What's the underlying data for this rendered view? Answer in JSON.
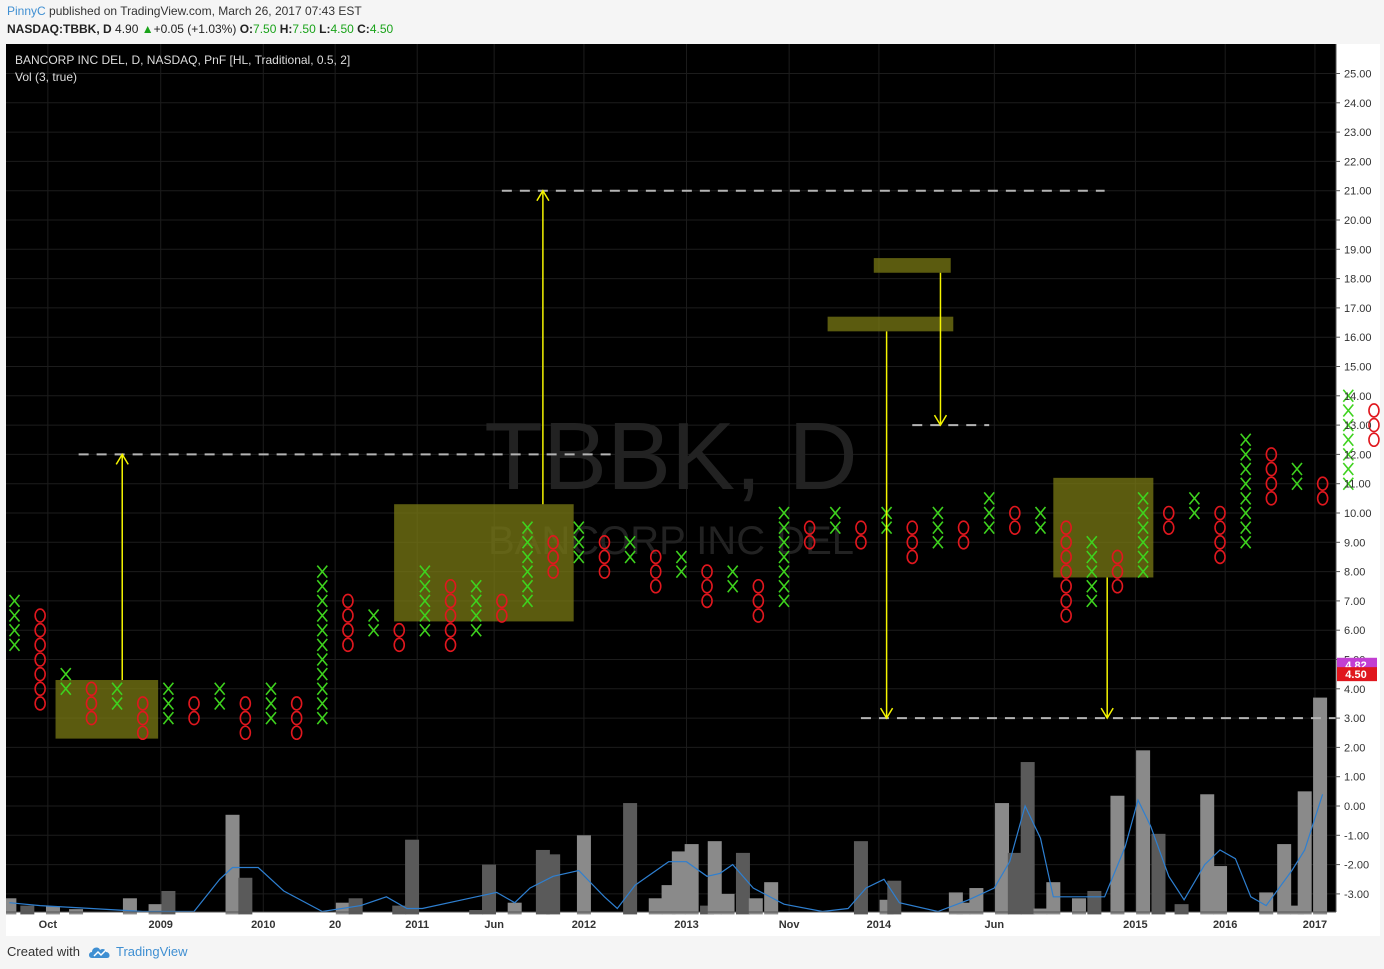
{
  "header": {
    "user": "PinnyC",
    "published": "published on TradingView.com, March 26, 2017 07:43 EST",
    "symbol": "NASDAQ:TBBK, D",
    "last": "4.90",
    "change": "+0.05 (+1.03%)",
    "o_label": "O:",
    "o_val": "7.50",
    "h_label": "H:",
    "h_val": "7.50",
    "l_label": "L:",
    "l_val": "4.50",
    "c_label": "C:",
    "c_val": "4.50"
  },
  "legend": {
    "line1": "BANCORP INC DEL, D, NASDAQ, PnF [HL, Traditional, 0.5, 2]",
    "line2": "Vol (3, true)"
  },
  "watermark": {
    "ticker": "TBBK, D",
    "name": "BANCORP INC DEL"
  },
  "price_tags": [
    {
      "value": "4.82",
      "color": "#c23fd2"
    },
    {
      "value": "4.50",
      "color": "#e0171e"
    }
  ],
  "footer": {
    "created": "Created with",
    "brand": "TradingView"
  },
  "colors": {
    "x": "#3ed21e",
    "o": "#e0171e",
    "box": "#7a7a14",
    "arrow": "#f5f500",
    "vol_line": "#2e7fd0",
    "bg": "#000000"
  },
  "chart_data": {
    "type": "point-and-figure",
    "box_size": 0.5,
    "reversal": 2,
    "ylim": [
      -4,
      25.5
    ],
    "y_ticks": [
      "25.00",
      "24.00",
      "23.00",
      "22.00",
      "21.00",
      "20.00",
      "19.00",
      "18.00",
      "17.00",
      "16.00",
      "15.00",
      "14.00",
      "13.00",
      "12.00",
      "11.00",
      "10.00",
      "9.00",
      "8.00",
      "7.00",
      "6.00",
      "5.00",
      "4.00",
      "3.00",
      "2.00",
      "1.00",
      "0.00",
      "-1.00",
      "-2.00",
      "-3.00"
    ],
    "x_ticks": [
      {
        "col": 1.3,
        "label": "Oct"
      },
      {
        "col": 5.7,
        "label": "2009"
      },
      {
        "col": 9.7,
        "label": "2010"
      },
      {
        "col": 12.5,
        "label": "20"
      },
      {
        "col": 15.7,
        "label": "2011"
      },
      {
        "col": 18.7,
        "label": "Jun"
      },
      {
        "col": 22.2,
        "label": "2012"
      },
      {
        "col": 26.2,
        "label": "2013"
      },
      {
        "col": 30.2,
        "label": "Nov"
      },
      {
        "col": 33.7,
        "label": "2014"
      },
      {
        "col": 38.2,
        "label": "Jun"
      },
      {
        "col": 43.7,
        "label": "2015"
      },
      {
        "col": 47.2,
        "label": "2016"
      },
      {
        "col": 50.7,
        "label": "2017"
      }
    ],
    "columns": [
      {
        "t": "X",
        "lo": 5.5,
        "hi": 7.0
      },
      {
        "t": "O",
        "lo": 3.5,
        "hi": 6.5
      },
      {
        "t": "X",
        "lo": 4.0,
        "hi": 4.5
      },
      {
        "t": "O",
        "lo": 3.0,
        "hi": 4.0
      },
      {
        "t": "X",
        "lo": 3.5,
        "hi": 4.0
      },
      {
        "t": "O",
        "lo": 2.5,
        "hi": 3.5
      },
      {
        "t": "X",
        "lo": 3.0,
        "hi": 4.0
      },
      {
        "t": "O",
        "lo": 3.0,
        "hi": 3.5
      },
      {
        "t": "X",
        "lo": 3.5,
        "hi": 4.0
      },
      {
        "t": "O",
        "lo": 2.5,
        "hi": 3.5
      },
      {
        "t": "X",
        "lo": 3.0,
        "hi": 4.0
      },
      {
        "t": "O",
        "lo": 2.5,
        "hi": 3.5
      },
      {
        "t": "X",
        "lo": 3.0,
        "hi": 8.0
      },
      {
        "t": "O",
        "lo": 5.5,
        "hi": 7.0
      },
      {
        "t": "X",
        "lo": 6.0,
        "hi": 6.5
      },
      {
        "t": "O",
        "lo": 5.5,
        "hi": 6.0
      },
      {
        "t": "X",
        "lo": 6.0,
        "hi": 8.0
      },
      {
        "t": "O",
        "lo": 5.5,
        "hi": 7.5
      },
      {
        "t": "X",
        "lo": 6.0,
        "hi": 7.5
      },
      {
        "t": "O",
        "lo": 6.5,
        "hi": 7.0
      },
      {
        "t": "X",
        "lo": 7.0,
        "hi": 9.5
      },
      {
        "t": "O",
        "lo": 8.0,
        "hi": 9.0
      },
      {
        "t": "X",
        "lo": 8.5,
        "hi": 9.5
      },
      {
        "t": "O",
        "lo": 8.0,
        "hi": 9.0
      },
      {
        "t": "X",
        "lo": 8.5,
        "hi": 9.0
      },
      {
        "t": "O",
        "lo": 7.5,
        "hi": 8.5
      },
      {
        "t": "X",
        "lo": 8.0,
        "hi": 8.5
      },
      {
        "t": "O",
        "lo": 7.0,
        "hi": 8.0
      },
      {
        "t": "X",
        "lo": 7.5,
        "hi": 8.0
      },
      {
        "t": "O",
        "lo": 6.5,
        "hi": 7.5
      },
      {
        "t": "X",
        "lo": 7.0,
        "hi": 10.0
      },
      {
        "t": "O",
        "lo": 9.0,
        "hi": 9.5
      },
      {
        "t": "X",
        "lo": 9.5,
        "hi": 10.0
      },
      {
        "t": "O",
        "lo": 9.0,
        "hi": 9.5
      },
      {
        "t": "X",
        "lo": 9.5,
        "hi": 10.0
      },
      {
        "t": "O",
        "lo": 8.5,
        "hi": 9.5
      },
      {
        "t": "X",
        "lo": 9.0,
        "hi": 10.0
      },
      {
        "t": "O",
        "lo": 9.0,
        "hi": 9.5
      },
      {
        "t": "X",
        "lo": 9.5,
        "hi": 10.5
      },
      {
        "t": "O",
        "lo": 9.5,
        "hi": 10.0
      },
      {
        "t": "X",
        "lo": 9.5,
        "hi": 10.0
      },
      {
        "t": "O",
        "lo": 6.5,
        "hi": 9.5
      },
      {
        "t": "X",
        "lo": 7.0,
        "hi": 9.0
      },
      {
        "t": "O",
        "lo": 7.5,
        "hi": 8.5
      },
      {
        "t": "X",
        "lo": 8.0,
        "hi": 10.5
      },
      {
        "t": "O",
        "lo": 9.5,
        "hi": 10.0
      },
      {
        "t": "X",
        "lo": 10.0,
        "hi": 10.5
      },
      {
        "t": "O",
        "lo": 8.5,
        "hi": 10.0
      },
      {
        "t": "X",
        "lo": 9.0,
        "hi": 12.5
      },
      {
        "t": "O",
        "lo": 10.5,
        "hi": 12.0
      },
      {
        "t": "X",
        "lo": 11.0,
        "hi": 11.5
      },
      {
        "t": "O",
        "lo": 10.5,
        "hi": 11.0
      },
      {
        "t": "X",
        "lo": 11.0,
        "hi": 14.0
      },
      {
        "t": "O",
        "lo": 12.5,
        "hi": 13.5
      },
      {
        "t": "X",
        "lo": 13.0,
        "hi": 16.0
      },
      {
        "t": "O",
        "lo": 15.0,
        "hi": 16.0
      },
      {
        "t": "X",
        "lo": 15.5,
        "hi": 18.5
      },
      {
        "t": "O",
        "lo": 17.5,
        "hi": 18.0
      },
      {
        "t": "X",
        "lo": 18.0,
        "hi": 19.0
      },
      {
        "t": "O",
        "lo": 16.0,
        "hi": 18.5
      },
      {
        "t": "X",
        "lo": 16.5,
        "hi": 18.0
      },
      {
        "t": "O",
        "lo": 17.0,
        "hi": 17.5
      },
      {
        "t": "X",
        "lo": 17.5,
        "hi": 18.0
      },
      {
        "t": "O",
        "lo": 16.5,
        "hi": 17.5
      },
      {
        "t": "X",
        "lo": 17.0,
        "hi": 17.5
      },
      {
        "t": "O",
        "lo": 16.5,
        "hi": 17.0
      },
      {
        "t": "X",
        "lo": 17.0,
        "hi": 19.5
      },
      {
        "t": "O",
        "lo": 18.5,
        "hi": 19.0
      },
      {
        "t": "X",
        "lo": 19.0,
        "hi": 20.0
      },
      {
        "t": "O",
        "lo": 18.5,
        "hi": 19.5
      },
      {
        "t": "X",
        "lo": 18.5,
        "hi": 19.0
      },
      {
        "t": "O",
        "lo": 18.0,
        "hi": 19.0
      },
      {
        "t": "X",
        "lo": 18.5,
        "hi": 19.0
      },
      {
        "t": "O",
        "lo": 15.5,
        "hi": 18.5
      },
      {
        "t": "X",
        "lo": 16.0,
        "hi": 16.5
      },
      {
        "t": "O",
        "lo": 15.0,
        "hi": 16.0
      },
      {
        "t": "X",
        "lo": 15.5,
        "hi": 16.5
      },
      {
        "t": "O",
        "lo": 10.0,
        "hi": 16.0
      },
      {
        "t": "X",
        "lo": 10.5,
        "hi": 12.0
      },
      {
        "t": "O",
        "lo": 8.5,
        "hi": 11.5
      },
      {
        "t": "X",
        "lo": 9.0,
        "hi": 9.5
      },
      {
        "t": "O",
        "lo": 8.0,
        "hi": 9.5
      },
      {
        "t": "X",
        "lo": 8.5,
        "hi": 9.0
      },
      {
        "t": "O",
        "lo": 8.0,
        "hi": 8.5
      },
      {
        "t": "X",
        "lo": 8.5,
        "hi": 10.0
      },
      {
        "t": "O",
        "lo": 9.0,
        "hi": 9.5
      },
      {
        "t": "X",
        "lo": 9.5,
        "hi": 11.0
      },
      {
        "t": "O",
        "lo": 8.5,
        "hi": 10.5
      },
      {
        "t": "X",
        "lo": 9.0,
        "hi": 10.5
      },
      {
        "t": "O",
        "lo": 7.5,
        "hi": 10.0
      },
      {
        "t": "X",
        "lo": 8.0,
        "hi": 9.0
      },
      {
        "t": "O",
        "lo": 7.0,
        "hi": 8.5
      },
      {
        "t": "X",
        "lo": 7.5,
        "hi": 8.0
      },
      {
        "t": "O",
        "lo": 4.0,
        "hi": 7.5
      },
      {
        "t": "X",
        "lo": 4.5,
        "hi": 6.0
      },
      {
        "t": "O",
        "lo": 5.5,
        "hi": 6.0
      },
      {
        "t": "X",
        "lo": 6.0,
        "hi": 7.0
      },
      {
        "t": "O",
        "lo": 5.0,
        "hi": 6.5
      },
      {
        "t": "X",
        "lo": 5.5,
        "hi": 7.0
      },
      {
        "t": "O",
        "lo": 6.0,
        "hi": 6.5
      },
      {
        "t": "X",
        "lo": 6.5,
        "hi": 8.0
      },
      {
        "t": "O",
        "lo": 4.5,
        "hi": 7.5
      }
    ],
    "boxes": [
      {
        "c0": 1.6,
        "c1": 5.6,
        "lo": 2.3,
        "hi": 4.3
      },
      {
        "c0": 14.8,
        "c1": 21.8,
        "lo": 6.3,
        "hi": 10.3
      },
      {
        "c0": 31.7,
        "c1": 36.6,
        "lo": 16.2,
        "hi": 16.7
      },
      {
        "c0": 33.5,
        "c1": 36.5,
        "lo": 18.2,
        "hi": 18.7
      },
      {
        "c0": 40.5,
        "c1": 44.4,
        "lo": 7.8,
        "hi": 11.2
      }
    ],
    "dashed_lines": [
      {
        "c0": 2.5,
        "c1": 23.5,
        "y": 12.0
      },
      {
        "c0": 19.0,
        "c1": 42.5,
        "y": 21.0
      },
      {
        "c0": 35.0,
        "c1": 38.0,
        "y": 13.0
      },
      {
        "c0": 33.0,
        "c1": 51.5,
        "y": 3.0
      }
    ],
    "arrows": [
      {
        "c": 4.2,
        "y0": 4.3,
        "y1": 12.0
      },
      {
        "c": 20.6,
        "y0": 10.3,
        "y1": 21.0
      },
      {
        "c": 34.0,
        "y0": 16.2,
        "y1": 3.0
      },
      {
        "c": 36.1,
        "y0": 18.2,
        "y1": 13.0
      },
      {
        "c": 42.6,
        "y0": 7.8,
        "y1": 3.0
      }
    ],
    "volume": {
      "bars": [
        {
          "c": -0.2,
          "v": 0.55
        },
        {
          "c": 0.5,
          "v": 0.3
        },
        {
          "c": 1.5,
          "v": 0.28
        },
        {
          "c": 2.4,
          "v": 0.18
        },
        {
          "c": 4.5,
          "v": 0.55
        },
        {
          "c": 5.5,
          "v": 0.35
        },
        {
          "c": 6.0,
          "v": 0.8
        },
        {
          "c": 8.5,
          "v": 3.4
        },
        {
          "c": 9.0,
          "v": 1.25
        },
        {
          "c": 12.8,
          "v": 0.4
        },
        {
          "c": 13.3,
          "v": 0.55
        },
        {
          "c": 15.0,
          "v": 0.3
        },
        {
          "c": 15.5,
          "v": 2.55
        },
        {
          "c": 18.0,
          "v": 0.15
        },
        {
          "c": 18.5,
          "v": 1.7
        },
        {
          "c": 19.5,
          "v": 0.4
        },
        {
          "c": 20.6,
          "v": 2.2
        },
        {
          "c": 21.0,
          "v": 2.05
        },
        {
          "c": 22.2,
          "v": 2.7
        },
        {
          "c": 24.0,
          "v": 3.8
        },
        {
          "c": 25.0,
          "v": 0.55
        },
        {
          "c": 25.5,
          "v": 1.0
        },
        {
          "c": 25.9,
          "v": 2.15
        },
        {
          "c": 26.4,
          "v": 2.4
        },
        {
          "c": 27.0,
          "v": 0.3
        },
        {
          "c": 27.3,
          "v": 2.5
        },
        {
          "c": 27.8,
          "v": 0.7
        },
        {
          "c": 28.4,
          "v": 2.1
        },
        {
          "c": 28.9,
          "v": 0.55
        },
        {
          "c": 29.5,
          "v": 1.1
        },
        {
          "c": 33.0,
          "v": 2.5
        },
        {
          "c": 34.0,
          "v": 0.5
        },
        {
          "c": 34.3,
          "v": 1.15
        },
        {
          "c": 36.7,
          "v": 0.75
        },
        {
          "c": 37.0,
          "v": 0.4
        },
        {
          "c": 37.5,
          "v": 0.9
        },
        {
          "c": 38.5,
          "v": 3.8
        },
        {
          "c": 39.0,
          "v": 2.1
        },
        {
          "c": 39.5,
          "v": 5.2
        },
        {
          "c": 40.0,
          "v": 0.2
        },
        {
          "c": 40.5,
          "v": 1.1
        },
        {
          "c": 41.5,
          "v": 0.55
        },
        {
          "c": 42.1,
          "v": 0.8
        },
        {
          "c": 43.0,
          "v": 4.05
        },
        {
          "c": 44.0,
          "v": 5.6
        },
        {
          "c": 44.6,
          "v": 2.75
        },
        {
          "c": 45.5,
          "v": 0.35
        },
        {
          "c": 46.5,
          "v": 4.1
        },
        {
          "c": 47.0,
          "v": 1.65
        },
        {
          "c": 48.8,
          "v": 0.75
        },
        {
          "c": 49.5,
          "v": 2.4
        },
        {
          "c": 50.0,
          "v": 0.3
        },
        {
          "c": 50.3,
          "v": 4.2
        },
        {
          "c": 50.9,
          "v": 7.4
        }
      ],
      "line": [
        {
          "c": -0.2,
          "v": 0.4
        },
        {
          "c": 1.0,
          "v": 0.3
        },
        {
          "c": 3.0,
          "v": 0.2
        },
        {
          "c": 5.0,
          "v": 0.1
        },
        {
          "c": 7.0,
          "v": 0.1
        },
        {
          "c": 8.0,
          "v": 1.2
        },
        {
          "c": 8.5,
          "v": 1.6
        },
        {
          "c": 9.5,
          "v": 1.6
        },
        {
          "c": 10.5,
          "v": 0.8
        },
        {
          "c": 12.0,
          "v": 0.1
        },
        {
          "c": 13.5,
          "v": 0.3
        },
        {
          "c": 14.5,
          "v": 0.6
        },
        {
          "c": 15.3,
          "v": 0.2
        },
        {
          "c": 15.9,
          "v": 0.2
        },
        {
          "c": 18.0,
          "v": 0.6
        },
        {
          "c": 18.8,
          "v": 0.75
        },
        {
          "c": 19.5,
          "v": 0.4
        },
        {
          "c": 20.1,
          "v": 0.9
        },
        {
          "c": 21.0,
          "v": 1.3
        },
        {
          "c": 22.0,
          "v": 1.5
        },
        {
          "c": 23.0,
          "v": 0.6
        },
        {
          "c": 23.5,
          "v": 0.2
        },
        {
          "c": 24.2,
          "v": 1.0
        },
        {
          "c": 25.5,
          "v": 1.8
        },
        {
          "c": 26.2,
          "v": 1.8
        },
        {
          "c": 27.0,
          "v": 1.3
        },
        {
          "c": 27.5,
          "v": 1.4
        },
        {
          "c": 28.0,
          "v": 1.7
        },
        {
          "c": 28.8,
          "v": 0.9
        },
        {
          "c": 30.0,
          "v": 0.35
        },
        {
          "c": 31.5,
          "v": 0.1
        },
        {
          "c": 32.5,
          "v": 0.2
        },
        {
          "c": 33.2,
          "v": 0.9
        },
        {
          "c": 33.9,
          "v": 1.2
        },
        {
          "c": 34.5,
          "v": 0.4
        },
        {
          "c": 36.0,
          "v": 0.1
        },
        {
          "c": 37.2,
          "v": 0.5
        },
        {
          "c": 38.2,
          "v": 0.9
        },
        {
          "c": 38.8,
          "v": 1.8
        },
        {
          "c": 39.4,
          "v": 3.7
        },
        {
          "c": 40.0,
          "v": 2.6
        },
        {
          "c": 40.5,
          "v": 0.6
        },
        {
          "c": 41.5,
          "v": 0.6
        },
        {
          "c": 42.5,
          "v": 0.6
        },
        {
          "c": 43.3,
          "v": 2.3
        },
        {
          "c": 43.8,
          "v": 3.9
        },
        {
          "c": 44.3,
          "v": 3.0
        },
        {
          "c": 45.0,
          "v": 1.3
        },
        {
          "c": 45.6,
          "v": 0.5
        },
        {
          "c": 46.4,
          "v": 1.7
        },
        {
          "c": 47.0,
          "v": 2.2
        },
        {
          "c": 47.6,
          "v": 1.9
        },
        {
          "c": 48.2,
          "v": 0.6
        },
        {
          "c": 48.8,
          "v": 0.3
        },
        {
          "c": 49.8,
          "v": 1.5
        },
        {
          "c": 50.3,
          "v": 2.2
        },
        {
          "c": 51.0,
          "v": 4.1
        }
      ]
    }
  }
}
